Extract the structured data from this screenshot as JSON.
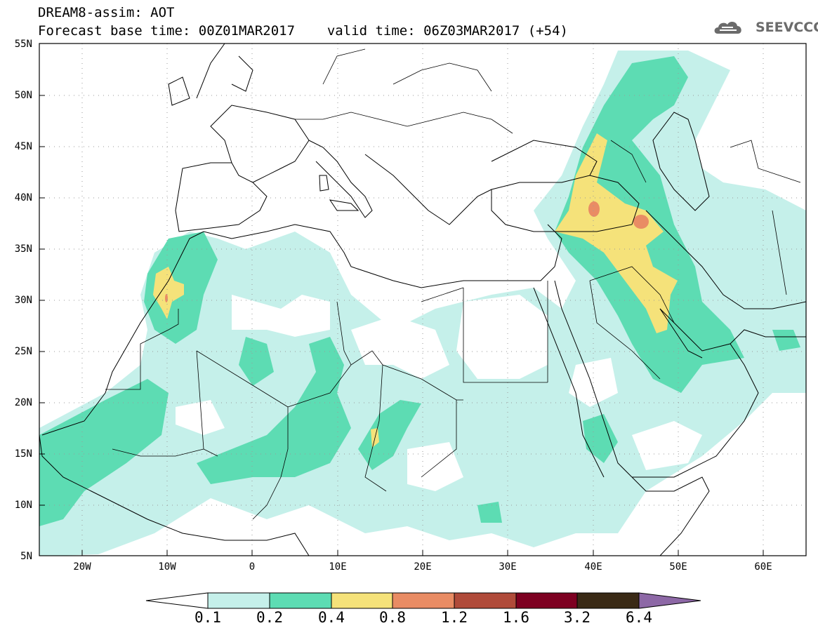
{
  "header": {
    "line1": "DREAM8-assim: AOT",
    "base_time": "Forecast base time: 00Z01MAR2017",
    "valid_time": "valid time: 06Z03MAR2017 (+54)"
  },
  "logo": {
    "text": "SEEVCCC",
    "icon": "cloud-icon"
  },
  "map": {
    "lon_range": [
      -25,
      65
    ],
    "lat_range": [
      5,
      55
    ],
    "lat_labels": [
      "55N",
      "50N",
      "45N",
      "40N",
      "35N",
      "30N",
      "25N",
      "20N",
      "15N",
      "10N",
      "5N"
    ],
    "lon_labels": [
      "20W",
      "10W",
      "0",
      "10E",
      "20E",
      "30E",
      "40E",
      "50E",
      "60E"
    ],
    "grid": "dotted",
    "field": "Aerosol optical thickness"
  },
  "colorbar": {
    "labels": [
      "0.1",
      "0.2",
      "0.4",
      "0.8",
      "1.2",
      "1.6",
      "3.2",
      "6.4"
    ],
    "colors": [
      "#c5f0ea",
      "#5ddcb3",
      "#f5e27a",
      "#e98c64",
      "#b04b3a",
      "#7d0021",
      "#3a2a16",
      "#8d68a6"
    ],
    "extends": "both"
  }
}
